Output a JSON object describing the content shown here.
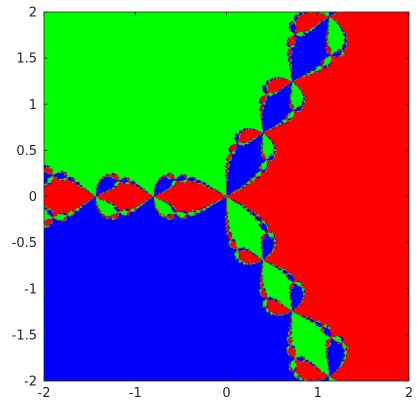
{
  "chart_data": {
    "type": "heatmap",
    "title": "",
    "xlabel": "",
    "ylabel": "",
    "xlim": [
      -2,
      2
    ],
    "ylim": [
      -2,
      2
    ],
    "x_ticks": [
      {
        "value": -2,
        "label": "-2"
      },
      {
        "value": -1,
        "label": "-1"
      },
      {
        "value": 0,
        "label": "0"
      },
      {
        "value": 1,
        "label": "1"
      },
      {
        "value": 2,
        "label": "2"
      }
    ],
    "y_ticks": [
      {
        "value": -2,
        "label": "-2"
      },
      {
        "value": -1.5,
        "label": "-1.5"
      },
      {
        "value": -1,
        "label": "-1"
      },
      {
        "value": -0.5,
        "label": "-0.5"
      },
      {
        "value": 0,
        "label": "0"
      },
      {
        "value": 0.5,
        "label": "0.5"
      },
      {
        "value": 1,
        "label": "1"
      },
      {
        "value": 1.5,
        "label": "1.5"
      },
      {
        "value": 2,
        "label": "2"
      }
    ],
    "grid": false,
    "legend": "none",
    "description_type": "basins of attraction (Newton fractal, z^3 - 1)",
    "basins": [
      {
        "root_re": 1,
        "root_im": 0,
        "color": "#ff0000"
      },
      {
        "root_re": -0.5,
        "root_im": 0.866,
        "color": "#00ff00"
      },
      {
        "root_re": -0.5,
        "root_im": -0.866,
        "color": "#0000ff"
      }
    ]
  },
  "colors": {
    "axis": "#262626",
    "background": "#ffffff"
  }
}
